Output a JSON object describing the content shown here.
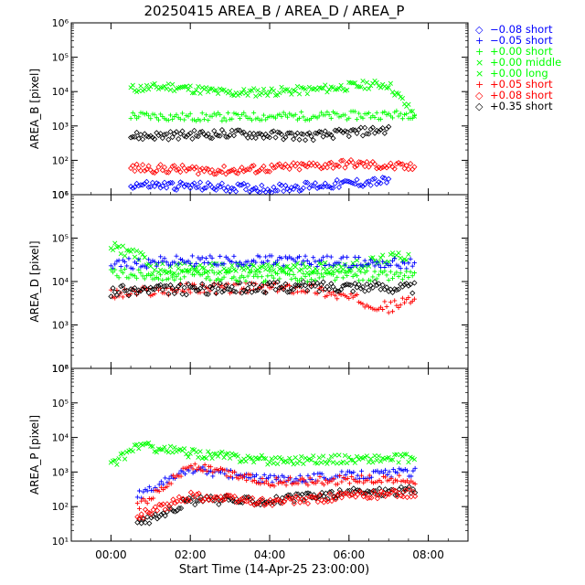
{
  "title": "20250415 AREA_B / AREA_D / AREA_P",
  "xlabel": "Start Time (14-Apr-25 23:00:00)",
  "x_ticks": [
    "00:00",
    "02:00",
    "04:00",
    "06:00",
    "08:00"
  ],
  "legend": [
    {
      "symbol": "◇",
      "label": "−0.08 short",
      "color": "#0000ff"
    },
    {
      "symbol": "+",
      "label": "−0.05 short",
      "color": "#0000ff"
    },
    {
      "symbol": "+",
      "label": "+0.00 short",
      "color": "#00ff00"
    },
    {
      "symbol": "×",
      "label": "+0.00 middle",
      "color": "#00ff00"
    },
    {
      "symbol": "×",
      "label": "+0.00 long",
      "color": "#00ff00"
    },
    {
      "symbol": "+",
      "label": "+0.05 short",
      "color": "#ff0000"
    },
    {
      "symbol": "◇",
      "label": "+0.08 short",
      "color": "#ff0000"
    },
    {
      "symbol": "◇",
      "label": "+0.35 short",
      "color": "#000000"
    }
  ],
  "chart_data": [
    {
      "type": "scatter",
      "ylabel": "AREA_B [pixel]",
      "yscale": "log",
      "ylim": [
        10,
        1000000
      ],
      "xlim": [
        "23:00",
        "09:00"
      ],
      "y_tick_labels": [
        "10¹",
        "10²",
        "10³",
        "10⁴",
        "10⁵",
        "10⁶"
      ],
      "series": [
        {
          "name": "+0.00 middle",
          "values_approx": {
            "00:30": 12000,
            "01:30": 14000,
            "03:00": 9000,
            "05:00": 11000,
            "06:30": 16000,
            "07:00": 16000,
            "07:40": 2000
          }
        },
        {
          "name": "+0.00 short",
          "values_approx": {
            "00:30": 2000,
            "02:00": 1800,
            "04:00": 1900,
            "06:00": 2000,
            "07:40": 2200
          }
        },
        {
          "name": "+0.35 short",
          "values_approx": {
            "00:30": 500,
            "03:00": 600,
            "05:00": 500,
            "07:00": 800
          }
        },
        {
          "name": "+0.08 short",
          "values_approx": {
            "00:30": 60,
            "03:00": 50,
            "06:00": 80,
            "07:40": 60
          }
        },
        {
          "name": "-0.08 short",
          "values_approx": {
            "00:30": 20,
            "04:00": 15,
            "07:00": 25
          }
        }
      ]
    },
    {
      "type": "scatter",
      "ylabel": "AREA_D [pixel]",
      "yscale": "log",
      "ylim": [
        100,
        1000000
      ],
      "xlim": [
        "23:00",
        "09:00"
      ],
      "y_tick_labels": [
        "10²",
        "10³",
        "10⁴",
        "10⁵",
        "10⁶"
      ],
      "series": [
        {
          "name": "+0.00 middle",
          "values_approx": {
            "00:00": 60000,
            "00:40": 45000,
            "01:00": 20000,
            "04:00": 20000,
            "06:00": 22000,
            "07:30": 40000
          }
        },
        {
          "name": "-0.05 short",
          "values_approx": {
            "00:00": 25000,
            "02:00": 30000,
            "05:00": 30000,
            "07:40": 25000
          }
        },
        {
          "name": "+0.05 short",
          "values_approx": {
            "00:00": 5000,
            "02:00": 7000,
            "05:00": 7000,
            "07:00": 2500,
            "07:40": 4000
          }
        },
        {
          "name": "+0.35 short",
          "values_approx": {
            "00:00": 6000,
            "03:00": 7000,
            "06:00": 8000,
            "07:40": 7000
          }
        },
        {
          "name": "+0.00 short",
          "values_approx": {
            "00:00": 15000,
            "04:00": 13000,
            "07:40": 14000
          }
        }
      ]
    },
    {
      "type": "scatter",
      "ylabel": "AREA_P [pixel]",
      "yscale": "log",
      "ylim": [
        10,
        1000000
      ],
      "xlim": [
        "23:00",
        "09:00"
      ],
      "y_tick_labels": [
        "10¹",
        "10²",
        "10³",
        "10⁴",
        "10⁵",
        "10⁶"
      ],
      "series": [
        {
          "name": "+0.00 middle",
          "values_approx": {
            "00:00": 1500,
            "00:40": 6000,
            "02:00": 3500,
            "04:00": 2200,
            "07:40": 2500
          }
        },
        {
          "name": "-0.05 short",
          "values_approx": {
            "00:40": 200,
            "02:00": 1200,
            "04:00": 600,
            "06:00": 800,
            "07:40": 1000
          }
        },
        {
          "name": "+0.05 short",
          "values_approx": {
            "00:40": 100,
            "02:00": 1500,
            "04:00": 500,
            "06:00": 600,
            "07:40": 600
          }
        },
        {
          "name": "+0.35 short",
          "values_approx": {
            "00:40": 30,
            "02:00": 150,
            "04:00": 150,
            "06:00": 250,
            "07:40": 300
          }
        },
        {
          "name": "+0.08 short",
          "values_approx": {
            "00:40": 50,
            "02:00": 200,
            "04:00": 130,
            "06:00": 200,
            "07:40": 250
          }
        }
      ]
    }
  ]
}
